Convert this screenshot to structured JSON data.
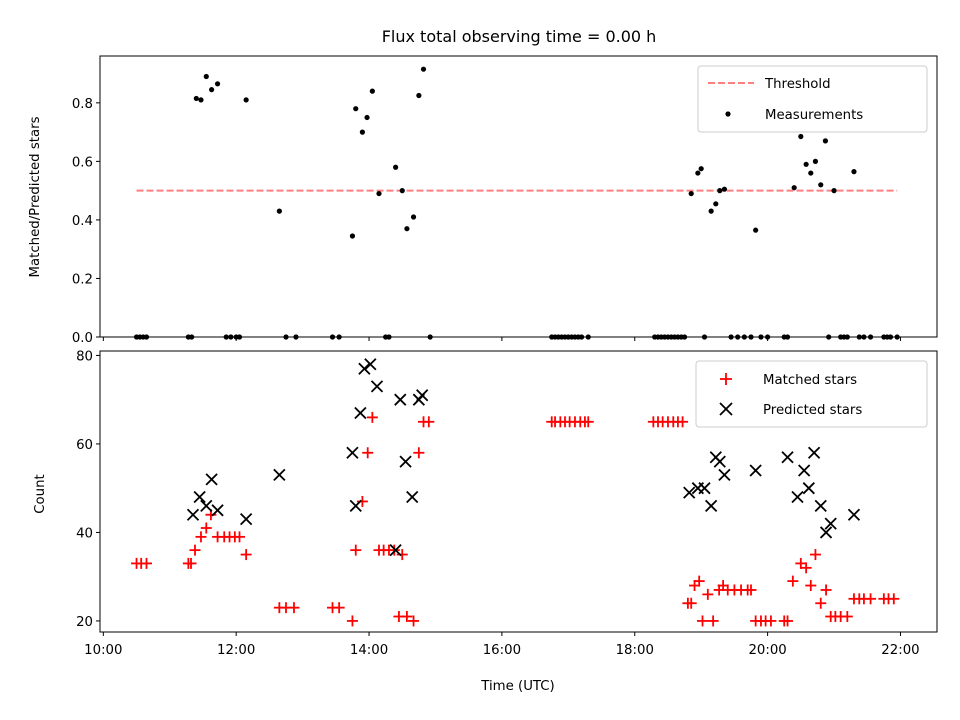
{
  "figure": {
    "title": "Flux total observing time = 0.00 h"
  },
  "chart_data": [
    {
      "type": "scatter",
      "ylabel": "Matched/Predicted stars",
      "xlabel": "",
      "xlim": [
        9.95,
        22.55
      ],
      "ylim": [
        0.0,
        0.96
      ],
      "yticks": [
        0.0,
        0.2,
        0.4,
        0.6,
        0.8
      ],
      "ytick_labels": [
        "0.0",
        "0.2",
        "0.4",
        "0.6",
        "0.8"
      ],
      "grid": false,
      "legend_position": "upper right",
      "threshold": {
        "name": "Threshold",
        "value": 0.5,
        "x_range": [
          10.5,
          21.95
        ],
        "color": "#ff7f7f"
      },
      "series": [
        {
          "name": "Measurements",
          "color": "#000000",
          "marker": "dot",
          "x": [
            10.5,
            10.55,
            10.6,
            10.65,
            11.28,
            11.33,
            11.4,
            11.47,
            11.55,
            11.63,
            11.72,
            11.85,
            11.92,
            12.0,
            12.05,
            12.15,
            12.65,
            12.75,
            12.9,
            13.45,
            13.55,
            13.75,
            13.8,
            13.9,
            13.97,
            14.05,
            14.15,
            14.25,
            14.3,
            14.4,
            14.5,
            14.57,
            14.67,
            14.75,
            14.82,
            14.92,
            16.75,
            16.8,
            16.85,
            16.9,
            16.95,
            17.0,
            17.05,
            17.1,
            17.15,
            17.2,
            17.3,
            18.3,
            18.35,
            18.4,
            18.45,
            18.5,
            18.55,
            18.6,
            18.65,
            18.7,
            18.75,
            18.85,
            18.95,
            19.0,
            19.05,
            19.15,
            19.22,
            19.28,
            19.35,
            19.45,
            19.55,
            19.65,
            19.75,
            19.82,
            19.9,
            20.0,
            20.25,
            20.3,
            20.4,
            20.5,
            20.58,
            20.65,
            20.72,
            20.8,
            20.87,
            20.92,
            21.0,
            21.1,
            21.15,
            21.2,
            21.3,
            21.38,
            21.45,
            21.55,
            21.75,
            21.8,
            21.85,
            21.95
          ],
          "y": [
            0.0,
            0.0,
            0.0,
            0.0,
            0.0,
            0.0,
            0.815,
            0.81,
            0.89,
            0.845,
            0.865,
            0.0,
            0.0,
            0.0,
            0.0,
            0.81,
            0.43,
            0.0,
            0.0,
            0.0,
            0.0,
            0.345,
            0.78,
            0.7,
            0.75,
            0.84,
            0.49,
            0.0,
            0.0,
            0.58,
            0.5,
            0.37,
            0.41,
            0.825,
            0.915,
            0.0,
            0.0,
            0.0,
            0.0,
            0.0,
            0.0,
            0.0,
            0.0,
            0.0,
            0.0,
            0.0,
            0.0,
            0.0,
            0.0,
            0.0,
            0.0,
            0.0,
            0.0,
            0.0,
            0.0,
            0.0,
            0.0,
            0.49,
            0.56,
            0.575,
            0.0,
            0.43,
            0.455,
            0.5,
            0.505,
            0.0,
            0.0,
            0.0,
            0.0,
            0.365,
            0.0,
            0.0,
            0.0,
            0.0,
            0.51,
            0.685,
            0.59,
            0.56,
            0.6,
            0.52,
            0.67,
            0.0,
            0.5,
            0.0,
            0.0,
            0.0,
            0.565,
            0.0,
            0.0,
            0.0,
            0.0,
            0.0,
            0.0,
            0.0
          ]
        }
      ]
    },
    {
      "type": "scatter",
      "ylabel": "Count",
      "xlabel": "Time (UTC)",
      "xlim": [
        9.95,
        22.55
      ],
      "ylim": [
        17.5,
        81.0
      ],
      "yticks": [
        20,
        40,
        60,
        80
      ],
      "ytick_labels": [
        "20",
        "40",
        "60",
        "80"
      ],
      "xticks": [
        10,
        12,
        14,
        16,
        18,
        20,
        22
      ],
      "xtick_labels": [
        "10:00",
        "12:00",
        "14:00",
        "16:00",
        "18:00",
        "20:00",
        "22:00"
      ],
      "grid": false,
      "legend_position": "upper right",
      "series": [
        {
          "name": "Matched stars",
          "color": "#ff0000",
          "marker": "plus",
          "x": [
            10.5,
            10.57,
            10.65,
            11.28,
            11.32,
            11.38,
            11.47,
            11.55,
            11.62,
            11.72,
            11.82,
            11.9,
            11.98,
            12.05,
            12.15,
            12.65,
            12.75,
            12.87,
            13.45,
            13.55,
            13.75,
            13.8,
            13.9,
            13.98,
            14.05,
            14.15,
            14.22,
            14.3,
            14.38,
            14.45,
            14.5,
            14.57,
            14.67,
            14.75,
            14.82,
            14.9,
            16.75,
            16.8,
            16.88,
            16.95,
            17.02,
            17.1,
            17.18,
            17.25,
            17.3,
            18.28,
            18.35,
            18.42,
            18.5,
            18.58,
            18.65,
            18.72,
            18.8,
            18.85,
            18.9,
            18.97,
            19.02,
            19.1,
            19.18,
            19.27,
            19.33,
            19.4,
            19.5,
            19.6,
            19.7,
            19.75,
            19.82,
            19.9,
            19.97,
            20.05,
            20.25,
            20.3,
            20.38,
            20.5,
            20.58,
            20.65,
            20.72,
            20.8,
            20.88,
            20.95,
            21.02,
            21.1,
            21.2,
            21.3,
            21.38,
            21.45,
            21.55,
            21.75,
            21.82,
            21.9
          ],
          "y": [
            33,
            33,
            33,
            33,
            33,
            36,
            39,
            41,
            44,
            39,
            39,
            39,
            39,
            39,
            35,
            23,
            23,
            23,
            23,
            23,
            20,
            36,
            47,
            58,
            66,
            36,
            36,
            36,
            36,
            21,
            35,
            21,
            20,
            58,
            65,
            65,
            65,
            65,
            65,
            65,
            65,
            65,
            65,
            65,
            65,
            65,
            65,
            65,
            65,
            65,
            65,
            65,
            24,
            24,
            28,
            29,
            20,
            26,
            20,
            27,
            28,
            27,
            27,
            27,
            27,
            27,
            20,
            20,
            20,
            20,
            20,
            20,
            29,
            33,
            32,
            28,
            35,
            24,
            27,
            21,
            21,
            21,
            21,
            25,
            25,
            25,
            25,
            25,
            25,
            25
          ],
          "note_hidden": ""
        },
        {
          "name": "Predicted stars",
          "color": "#000000",
          "marker": "x",
          "x": [
            11.35,
            11.45,
            11.55,
            11.63,
            11.72,
            12.15,
            12.65,
            13.75,
            13.8,
            13.87,
            13.93,
            14.02,
            14.12,
            14.4,
            14.47,
            14.55,
            14.65,
            14.75,
            14.8,
            18.82,
            18.95,
            19.05,
            19.15,
            19.22,
            19.28,
            19.35,
            19.82,
            20.3,
            20.45,
            20.55,
            20.62,
            20.7,
            20.8,
            20.88,
            20.95,
            21.3
          ],
          "y": [
            44,
            48,
            46,
            52,
            45,
            43,
            53,
            58,
            46,
            67,
            77,
            78,
            73,
            36,
            70,
            56,
            48,
            70,
            71,
            49,
            50,
            50,
            46,
            57,
            56,
            53,
            54,
            57,
            48,
            54,
            50,
            58,
            46,
            40,
            42,
            44
          ]
        }
      ]
    }
  ]
}
